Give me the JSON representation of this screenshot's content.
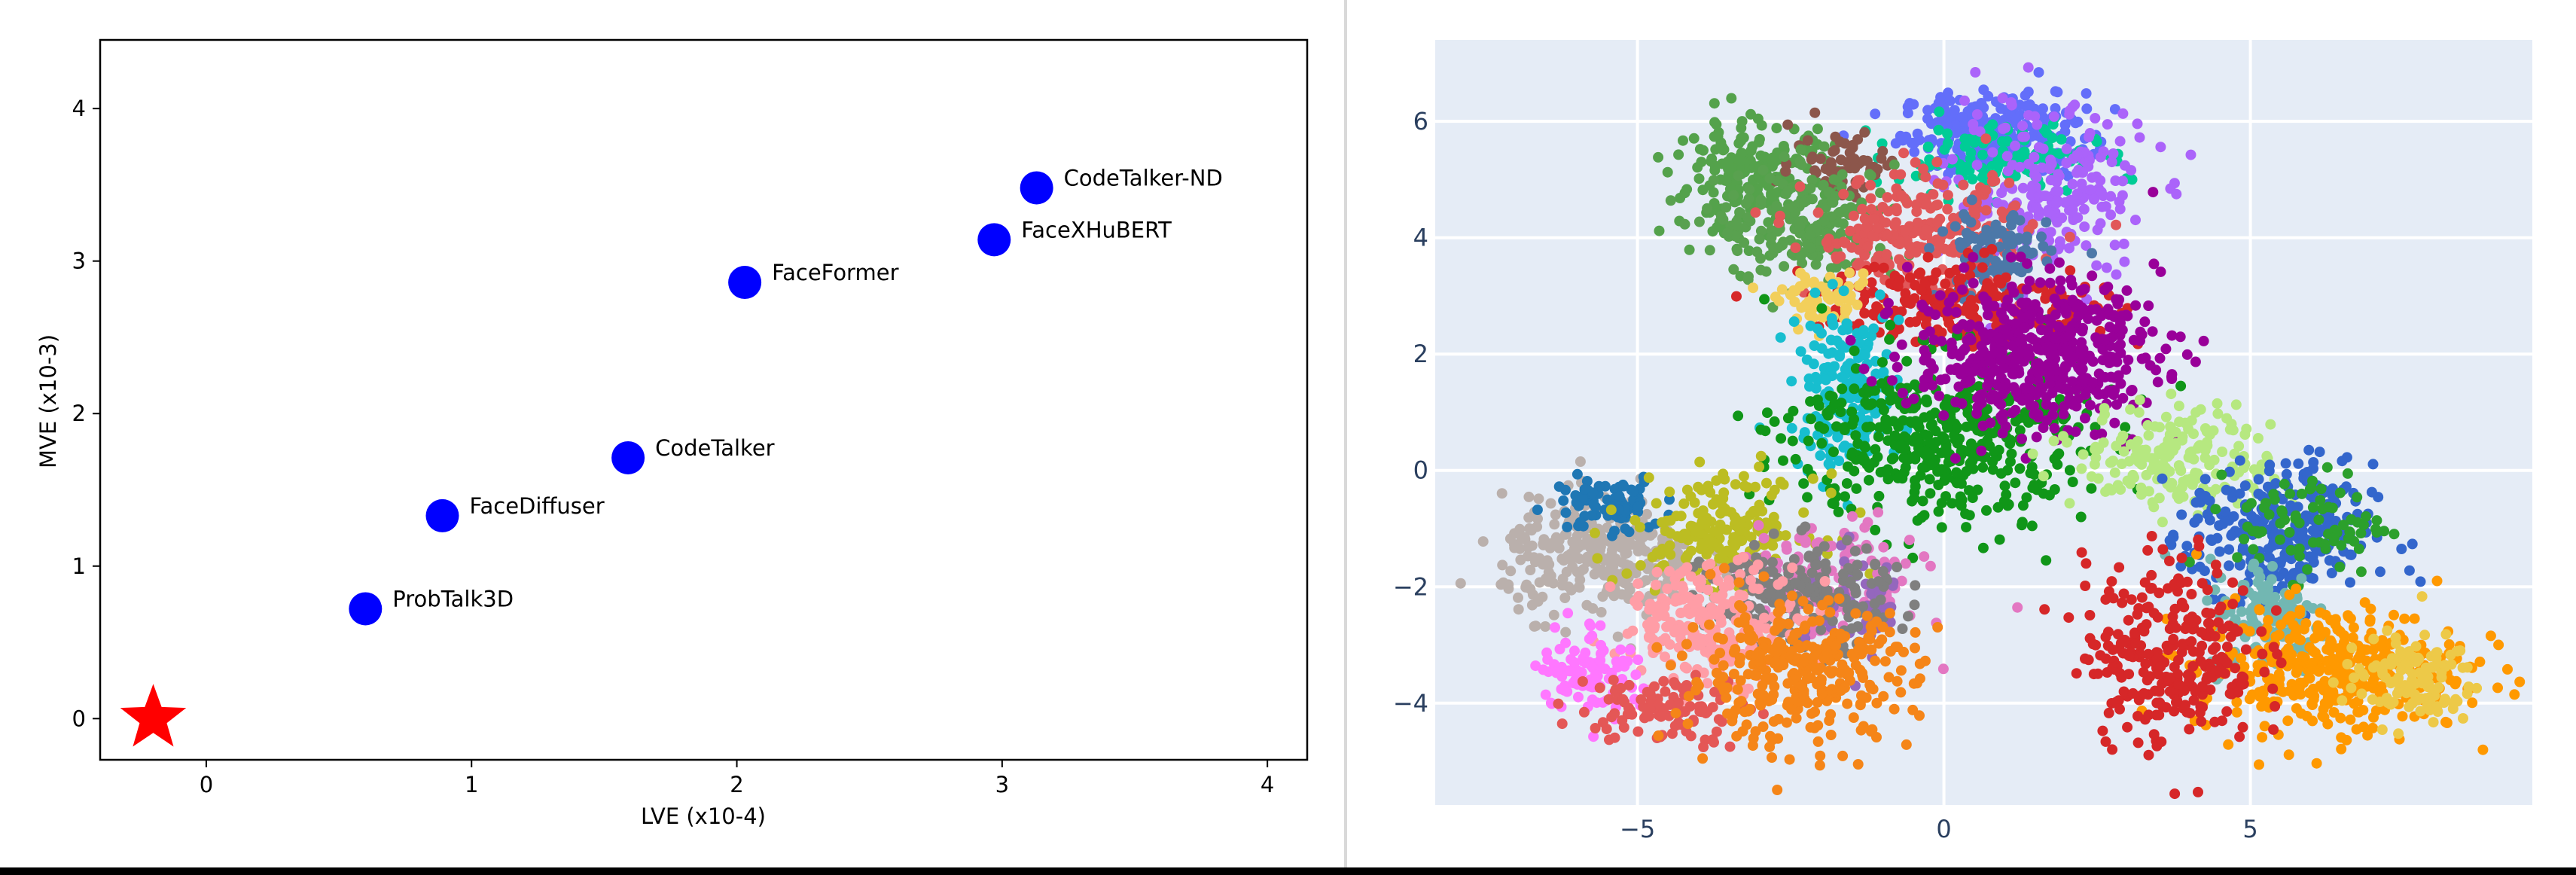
{
  "chart_data": [
    {
      "type": "scatter",
      "xlabel": "LVE (x10-4)",
      "ylabel": "MVE (x10-3)",
      "xlim": [
        -0.4,
        4.15
      ],
      "ylim": [
        -0.27,
        4.45
      ],
      "xticks": [
        0,
        1,
        2,
        3,
        4
      ],
      "yticks": [
        0,
        1,
        2,
        3,
        4
      ],
      "grid": false,
      "points": [
        {
          "label": "ProbTalk3D",
          "x": 0.6,
          "y": 0.72,
          "marker": "circle",
          "color": "#0000ff"
        },
        {
          "label": "FaceDiffuser",
          "x": 0.89,
          "y": 1.33,
          "marker": "circle",
          "color": "#0000ff"
        },
        {
          "label": "CodeTalker",
          "x": 1.59,
          "y": 1.71,
          "marker": "circle",
          "color": "#0000ff"
        },
        {
          "label": "FaceFormer",
          "x": 2.03,
          "y": 2.86,
          "marker": "circle",
          "color": "#0000ff"
        },
        {
          "label": "FaceXHuBERT",
          "x": 2.97,
          "y": 3.14,
          "marker": "circle",
          "color": "#0000ff"
        },
        {
          "label": "CodeTalker-ND",
          "x": 3.13,
          "y": 3.48,
          "marker": "circle",
          "color": "#0000ff"
        },
        {
          "label": "",
          "x": -0.2,
          "y": 0.0,
          "marker": "star",
          "color": "#ff0000"
        }
      ]
    },
    {
      "type": "scatter",
      "xlim": [
        -8.3,
        9.6
      ],
      "ylim": [
        -5.75,
        7.4
      ],
      "xticks": [
        -5,
        0,
        5
      ],
      "yticks": [
        -4,
        -2,
        0,
        2,
        4,
        6
      ],
      "xtick_labels": [
        "−5",
        "0",
        "5"
      ],
      "ytick_labels": [
        "−4",
        "−2",
        "0",
        "2",
        "4",
        "6"
      ],
      "grid": true,
      "background": "#e5ecf6",
      "clusters": [
        {
          "cx": 0.8,
          "cy": 5.8,
          "sx": 0.75,
          "sy": 0.35,
          "n": 260,
          "color": "#636efa"
        },
        {
          "cx": 0.9,
          "cy": 5.35,
          "sx": 0.8,
          "sy": 0.3,
          "n": 140,
          "color": "#00cc96"
        },
        {
          "cx": 1.7,
          "cy": 4.7,
          "sx": 0.8,
          "sy": 0.75,
          "n": 230,
          "color": "#ab63fa"
        },
        {
          "cx": -3.1,
          "cy": 5.0,
          "sx": 0.65,
          "sy": 0.5,
          "n": 220,
          "color": "#54a24b"
        },
        {
          "cx": -1.6,
          "cy": 5.3,
          "sx": 0.45,
          "sy": 0.3,
          "n": 60,
          "color": "#8c564b"
        },
        {
          "cx": -2.2,
          "cy": 4.2,
          "sx": 0.75,
          "sy": 0.5,
          "n": 200,
          "color": "#59a14f"
        },
        {
          "cx": -0.4,
          "cy": 4.05,
          "sx": 0.9,
          "sy": 0.5,
          "n": 240,
          "color": "#e15759"
        },
        {
          "cx": 0.8,
          "cy": 3.7,
          "sx": 0.45,
          "sy": 0.4,
          "n": 100,
          "color": "#4c78a8"
        },
        {
          "cx": 0.3,
          "cy": 2.9,
          "sx": 1.2,
          "sy": 0.35,
          "n": 200,
          "color": "#d62728"
        },
        {
          "cx": -1.9,
          "cy": 2.9,
          "sx": 0.4,
          "sy": 0.2,
          "n": 60,
          "color": "#f2cf5b"
        },
        {
          "cx": -1.6,
          "cy": 1.4,
          "sx": 0.45,
          "sy": 0.7,
          "n": 180,
          "color": "#17becf"
        },
        {
          "cx": -0.1,
          "cy": 0.55,
          "sx": 1.2,
          "sy": 0.75,
          "n": 450,
          "color": "#109618"
        },
        {
          "cx": 1.5,
          "cy": 2.0,
          "sx": 1.0,
          "sy": 0.65,
          "n": 520,
          "color": "#990099"
        },
        {
          "cx": 3.8,
          "cy": 0.2,
          "sx": 0.8,
          "sy": 0.45,
          "n": 200,
          "color": "#b6e880"
        },
        {
          "cx": 5.5,
          "cy": -1.1,
          "sx": 0.75,
          "sy": 0.6,
          "n": 300,
          "color": "#3366cc"
        },
        {
          "cx": 6.0,
          "cy": -0.9,
          "sx": 0.6,
          "sy": 0.45,
          "n": 80,
          "color": "#2ca02c"
        },
        {
          "cx": 5.3,
          "cy": -2.5,
          "sx": 0.5,
          "sy": 0.5,
          "n": 120,
          "color": "#72b7b2"
        },
        {
          "cx": 6.3,
          "cy": -3.4,
          "sx": 1.1,
          "sy": 0.55,
          "n": 380,
          "color": "#ff9900"
        },
        {
          "cx": 7.6,
          "cy": -3.6,
          "sx": 0.55,
          "sy": 0.4,
          "n": 120,
          "color": "#edc948"
        },
        {
          "cx": 3.7,
          "cy": -3.1,
          "sx": 0.7,
          "sy": 0.8,
          "n": 280,
          "color": "#d62728"
        },
        {
          "cx": -5.6,
          "cy": -1.5,
          "sx": 0.8,
          "sy": 0.5,
          "n": 300,
          "color": "#bab0ac"
        },
        {
          "cx": -5.5,
          "cy": -0.6,
          "sx": 0.45,
          "sy": 0.25,
          "n": 80,
          "color": "#1f77b4"
        },
        {
          "cx": -3.6,
          "cy": -1.0,
          "sx": 0.75,
          "sy": 0.45,
          "n": 200,
          "color": "#bcbd22"
        },
        {
          "cx": -1.8,
          "cy": -1.9,
          "sx": 0.7,
          "sy": 0.5,
          "n": 140,
          "color": "#e377c2"
        },
        {
          "cx": -1.3,
          "cy": -2.3,
          "sx": 0.35,
          "sy": 0.5,
          "n": 60,
          "color": "#9467bd"
        },
        {
          "cx": -2.4,
          "cy": -2.2,
          "sx": 0.75,
          "sy": 0.45,
          "n": 200,
          "color": "#7f7f7f"
        },
        {
          "cx": -3.8,
          "cy": -2.6,
          "sx": 0.75,
          "sy": 0.5,
          "n": 220,
          "color": "#ff9da6"
        },
        {
          "cx": -5.8,
          "cy": -3.4,
          "sx": 0.4,
          "sy": 0.4,
          "n": 100,
          "color": "#ff77ff"
        },
        {
          "cx": -4.6,
          "cy": -4.1,
          "sx": 0.7,
          "sy": 0.3,
          "n": 100,
          "color": "#e45756"
        },
        {
          "cx": -2.4,
          "cy": -3.5,
          "sx": 0.95,
          "sy": 0.6,
          "n": 340,
          "color": "#f58518"
        }
      ]
    }
  ]
}
